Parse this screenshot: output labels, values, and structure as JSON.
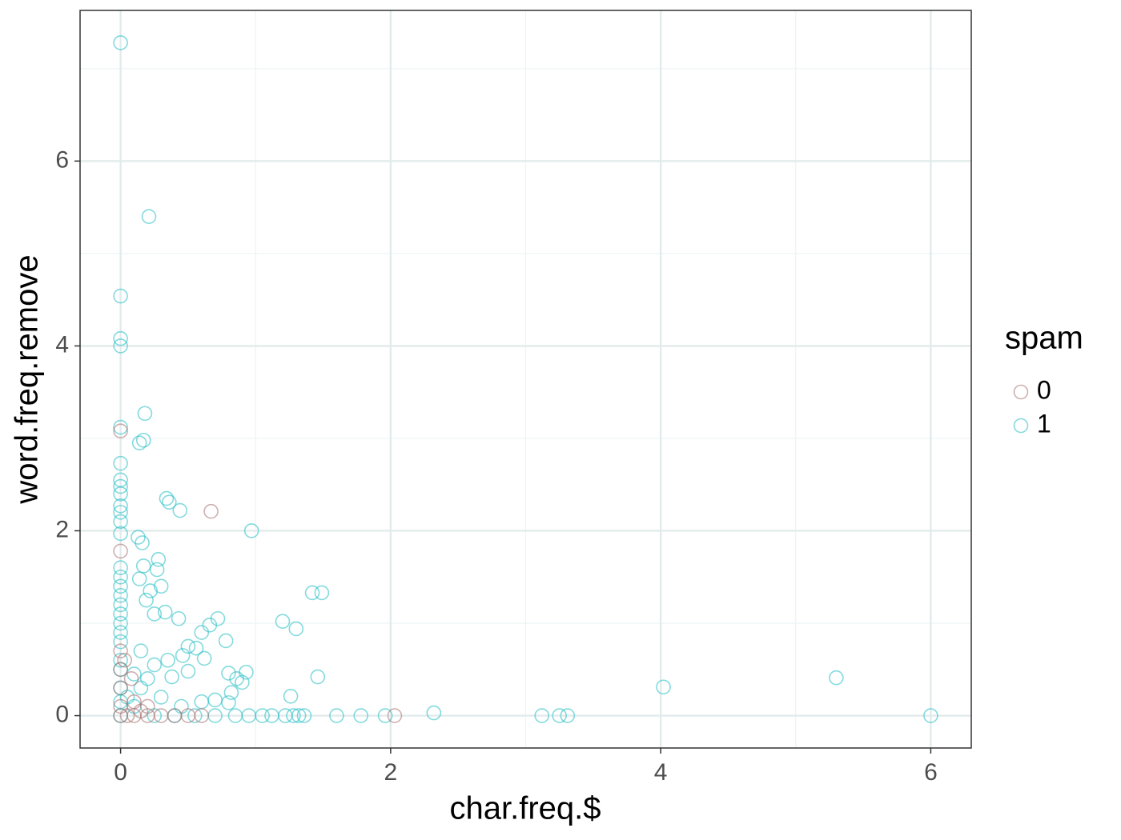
{
  "chart_data": {
    "type": "scatter",
    "x_label": "char.freq.$",
    "y_label": "word.freq.remove",
    "legend_title": "spam",
    "legend_position": "right",
    "grid": true,
    "alpha": 0.55,
    "xlim": [
      -0.3,
      6.3
    ],
    "ylim": [
      -0.35,
      7.63
    ],
    "xticks": [
      0,
      2,
      4,
      6
    ],
    "yticks": [
      0,
      2,
      4,
      6
    ],
    "xminor": [
      1,
      3,
      5
    ],
    "yminor": [
      1,
      3,
      5,
      7
    ],
    "series": [
      {
        "name": "0",
        "color": "#a8706f",
        "x": [
          0.67,
          0,
          0,
          0,
          0,
          0,
          0,
          0,
          0.05,
          0.1,
          0.2,
          0.3,
          0.4,
          0.1,
          0.2,
          2.03,
          0.08,
          0.03,
          0.15,
          0.5,
          0.6
        ],
        "y": [
          2.21,
          1.78,
          3.08,
          0.7,
          0.5,
          0.3,
          0.1,
          0,
          0,
          0,
          0,
          0,
          0,
          0.15,
          0.1,
          0,
          0.4,
          0.6,
          0.05,
          0,
          0
        ]
      },
      {
        "name": "1",
        "color": "#1fbcc2",
        "x": [
          0,
          0.21,
          0,
          0,
          0,
          0,
          0.18,
          0.17,
          0.14,
          0,
          0,
          0,
          0,
          0,
          0,
          0,
          0,
          0.34,
          0.36,
          0.44,
          0.97,
          0.13,
          0.16,
          0.28,
          0.27,
          0.17,
          0,
          0,
          0,
          0,
          0,
          0,
          0,
          0,
          0,
          0.14,
          0.3,
          0.22,
          0.19,
          0.25,
          0.33,
          0.43,
          0.66,
          0.72,
          0.6,
          0.78,
          1.42,
          1.49,
          1.2,
          1.3,
          0.5,
          0.56,
          0.46,
          0.35,
          0.25,
          0.15,
          0.1,
          0.2,
          0.38,
          0.5,
          0.62,
          0.8,
          0.86,
          0.93,
          0.9,
          0.82,
          1.46,
          1.26,
          4.02,
          5.3,
          2.32,
          0.6,
          0.7,
          0.8,
          0.45,
          0.3,
          0.15,
          0.55,
          0.7,
          0.85,
          0.95,
          1.05,
          1.12,
          1.22,
          1.28,
          1.32,
          1.36,
          1.6,
          1.78,
          1.96,
          3.12,
          3.25,
          3.31,
          6.0,
          0.25,
          0.4,
          0.1,
          0.05,
          0,
          0,
          0,
          0,
          0
        ],
        "y": [
          7.28,
          5.4,
          4.54,
          4.08,
          4.0,
          3.12,
          3.27,
          2.98,
          2.95,
          2.73,
          2.55,
          2.48,
          2.4,
          2.27,
          2.2,
          2.1,
          1.97,
          2.35,
          2.31,
          2.22,
          2.0,
          1.93,
          1.87,
          1.69,
          1.58,
          1.62,
          1.6,
          1.5,
          1.4,
          1.3,
          1.2,
          1.1,
          1.0,
          0.9,
          0.8,
          1.48,
          1.4,
          1.35,
          1.25,
          1.1,
          1.12,
          1.05,
          0.98,
          1.05,
          0.9,
          0.81,
          1.33,
          1.33,
          1.02,
          0.94,
          0.75,
          0.73,
          0.65,
          0.6,
          0.55,
          0.7,
          0.45,
          0.4,
          0.42,
          0.48,
          0.62,
          0.46,
          0.4,
          0.47,
          0.36,
          0.25,
          0.42,
          0.21,
          0.31,
          0.41,
          0.03,
          0.15,
          0.17,
          0.14,
          0.1,
          0.2,
          0.3,
          0,
          0,
          0,
          0,
          0,
          0,
          0,
          0,
          0,
          0,
          0,
          0,
          0,
          0,
          0,
          0,
          0,
          0,
          0,
          0.1,
          0.2,
          0.6,
          0.5,
          0.3,
          0.15,
          0
        ]
      }
    ]
  }
}
